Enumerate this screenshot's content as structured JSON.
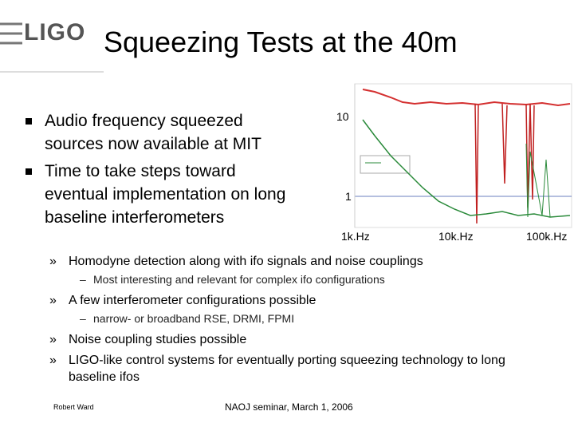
{
  "header": {
    "logo": "LIGO",
    "title": "Squeezing Tests at the 40m"
  },
  "bullets": [
    "Audio frequency squeezed sources now available at MIT",
    "Time to take steps toward eventual implementation on long baseline interferometers"
  ],
  "plot": {
    "y_labels": [
      "10",
      "1"
    ],
    "x_labels": [
      "1k.Hz",
      "10k.Hz",
      "100k.Hz"
    ]
  },
  "items": [
    {
      "marker": "»",
      "text": "Homodyne detection along with ifo signals and noise couplings",
      "sub": {
        "marker": "–",
        "text": "Most interesting and relevant for complex ifo configurations"
      }
    },
    {
      "marker": "»",
      "text": "A few interferometer configurations possible",
      "sub": {
        "marker": "–",
        "text": "narrow- or broadband RSE, DRMI, FPMI"
      }
    },
    {
      "marker": "»",
      "text": "Noise coupling studies possible"
    },
    {
      "marker": "»",
      "text": "LIGO-like control systems for eventually porting squeezing technology to long baseline ifos"
    }
  ],
  "footer": {
    "author": "Robert Ward",
    "event": "NAOJ seminar, March 1, 2006"
  }
}
